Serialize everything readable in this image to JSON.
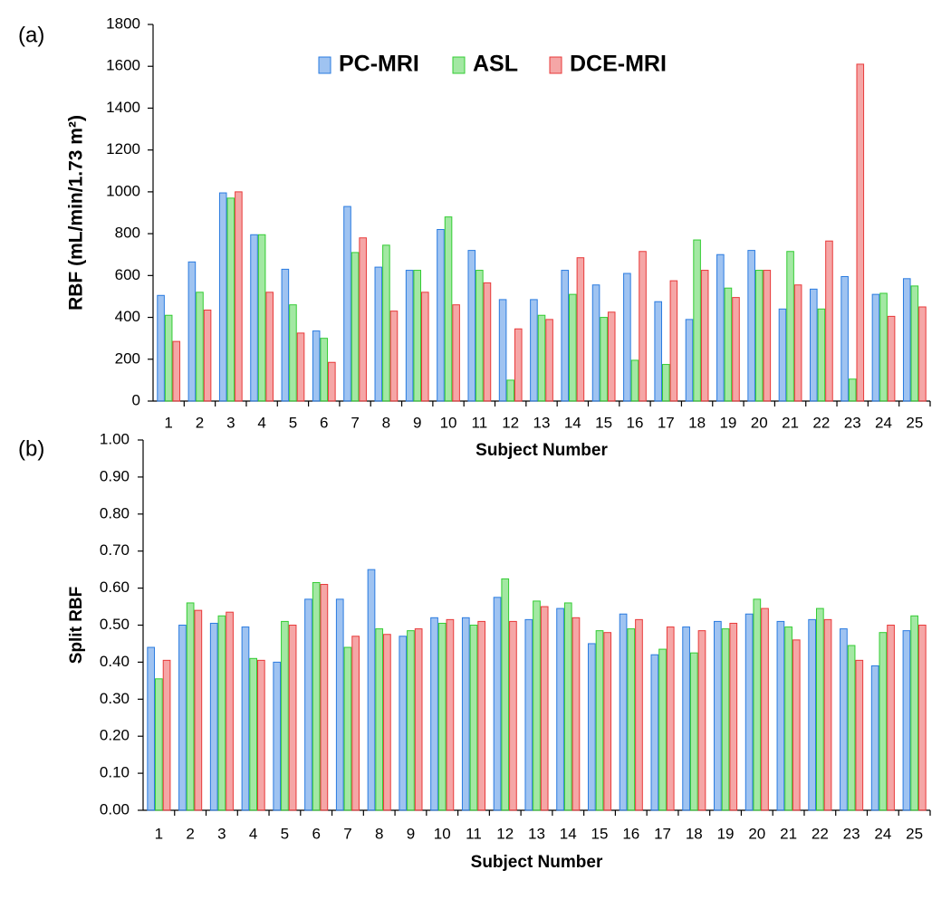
{
  "chart_data": [
    {
      "type": "bar",
      "panel": "(a)",
      "y_label": "RBF (mL/min/1.73 m²)",
      "x_label": "Subject Number",
      "categories": [
        "1",
        "2",
        "3",
        "4",
        "5",
        "6",
        "7",
        "8",
        "9",
        "10",
        "11",
        "12",
        "13",
        "14",
        "15",
        "16",
        "17",
        "18",
        "19",
        "20",
        "21",
        "22",
        "23",
        "24",
        "25"
      ],
      "legend": "top-center",
      "series": [
        {
          "name": "PC-MRI",
          "color": "#2a7be0",
          "values": [
            505,
            665,
            995,
            795,
            630,
            335,
            930,
            640,
            625,
            820,
            720,
            485,
            485,
            625,
            555,
            610,
            475,
            390,
            700,
            720,
            440,
            535,
            595,
            510,
            585
          ]
        },
        {
          "name": "ASL",
          "color": "#33cc33",
          "values": [
            410,
            520,
            970,
            795,
            460,
            300,
            710,
            745,
            625,
            880,
            625,
            100,
            410,
            510,
            400,
            195,
            175,
            770,
            540,
            625,
            715,
            440,
            105,
            515,
            550
          ]
        },
        {
          "name": "DCE-MRI",
          "color": "#e83a3a",
          "values": [
            285,
            435,
            1000,
            520,
            325,
            185,
            780,
            430,
            520,
            460,
            565,
            345,
            390,
            685,
            425,
            715,
            575,
            625,
            495,
            625,
            555,
            765,
            1610,
            405,
            450
          ]
        }
      ],
      "ylim": [
        0,
        1800
      ],
      "yticks": [
        0,
        200,
        400,
        600,
        800,
        1000,
        1200,
        1400,
        1600,
        1800
      ]
    },
    {
      "type": "bar",
      "panel": "(b)",
      "y_label": "Split RBF",
      "x_label": "Subject Number",
      "categories": [
        "1",
        "2",
        "3",
        "4",
        "5",
        "6",
        "7",
        "8",
        "9",
        "10",
        "11",
        "12",
        "13",
        "14",
        "15",
        "16",
        "17",
        "18",
        "19",
        "20",
        "21",
        "22",
        "23",
        "24",
        "25"
      ],
      "series": [
        {
          "color": "#2a7be0",
          "values": [
            0.44,
            0.5,
            0.505,
            0.495,
            0.4,
            0.57,
            0.57,
            0.65,
            0.47,
            0.52,
            0.52,
            0.575,
            0.515,
            0.545,
            0.45,
            0.53,
            0.42,
            0.495,
            0.51,
            0.53,
            0.51,
            0.515,
            0.49,
            0.39,
            0.485
          ]
        },
        {
          "color": "#33cc33",
          "values": [
            0.355,
            0.56,
            0.525,
            0.41,
            0.51,
            0.615,
            0.44,
            0.49,
            0.485,
            0.505,
            0.5,
            0.625,
            0.565,
            0.56,
            0.485,
            0.49,
            0.435,
            0.425,
            0.49,
            0.57,
            0.495,
            0.545,
            0.445,
            0.48,
            0.525
          ]
        },
        {
          "color": "#e83a3a",
          "values": [
            0.405,
            0.54,
            0.535,
            0.405,
            0.5,
            0.61,
            0.47,
            0.475,
            0.49,
            0.515,
            0.51,
            0.51,
            0.55,
            0.52,
            0.48,
            0.515,
            0.495,
            0.485,
            0.505,
            0.545,
            0.46,
            0.515,
            0.405,
            0.5,
            0.5
          ]
        }
      ],
      "ylim": [
        0,
        1
      ],
      "yticks": [
        {
          "value": 0,
          "label": "0.00"
        },
        {
          "value": 0.1,
          "label": "0.10"
        },
        {
          "value": 0.2,
          "label": "0.20"
        },
        {
          "value": 0.3,
          "label": "0.30"
        },
        {
          "value": 0.4,
          "label": "0.40"
        },
        {
          "value": 0.5,
          "label": "0.50"
        },
        {
          "value": 0.6,
          "label": "0.60"
        },
        {
          "value": 0.7,
          "label": "0.70"
        },
        {
          "value": 0.8,
          "label": "0.80"
        },
        {
          "value": 0.9,
          "label": "0.90"
        },
        {
          "value": 1,
          "label": "1.00"
        }
      ]
    }
  ]
}
